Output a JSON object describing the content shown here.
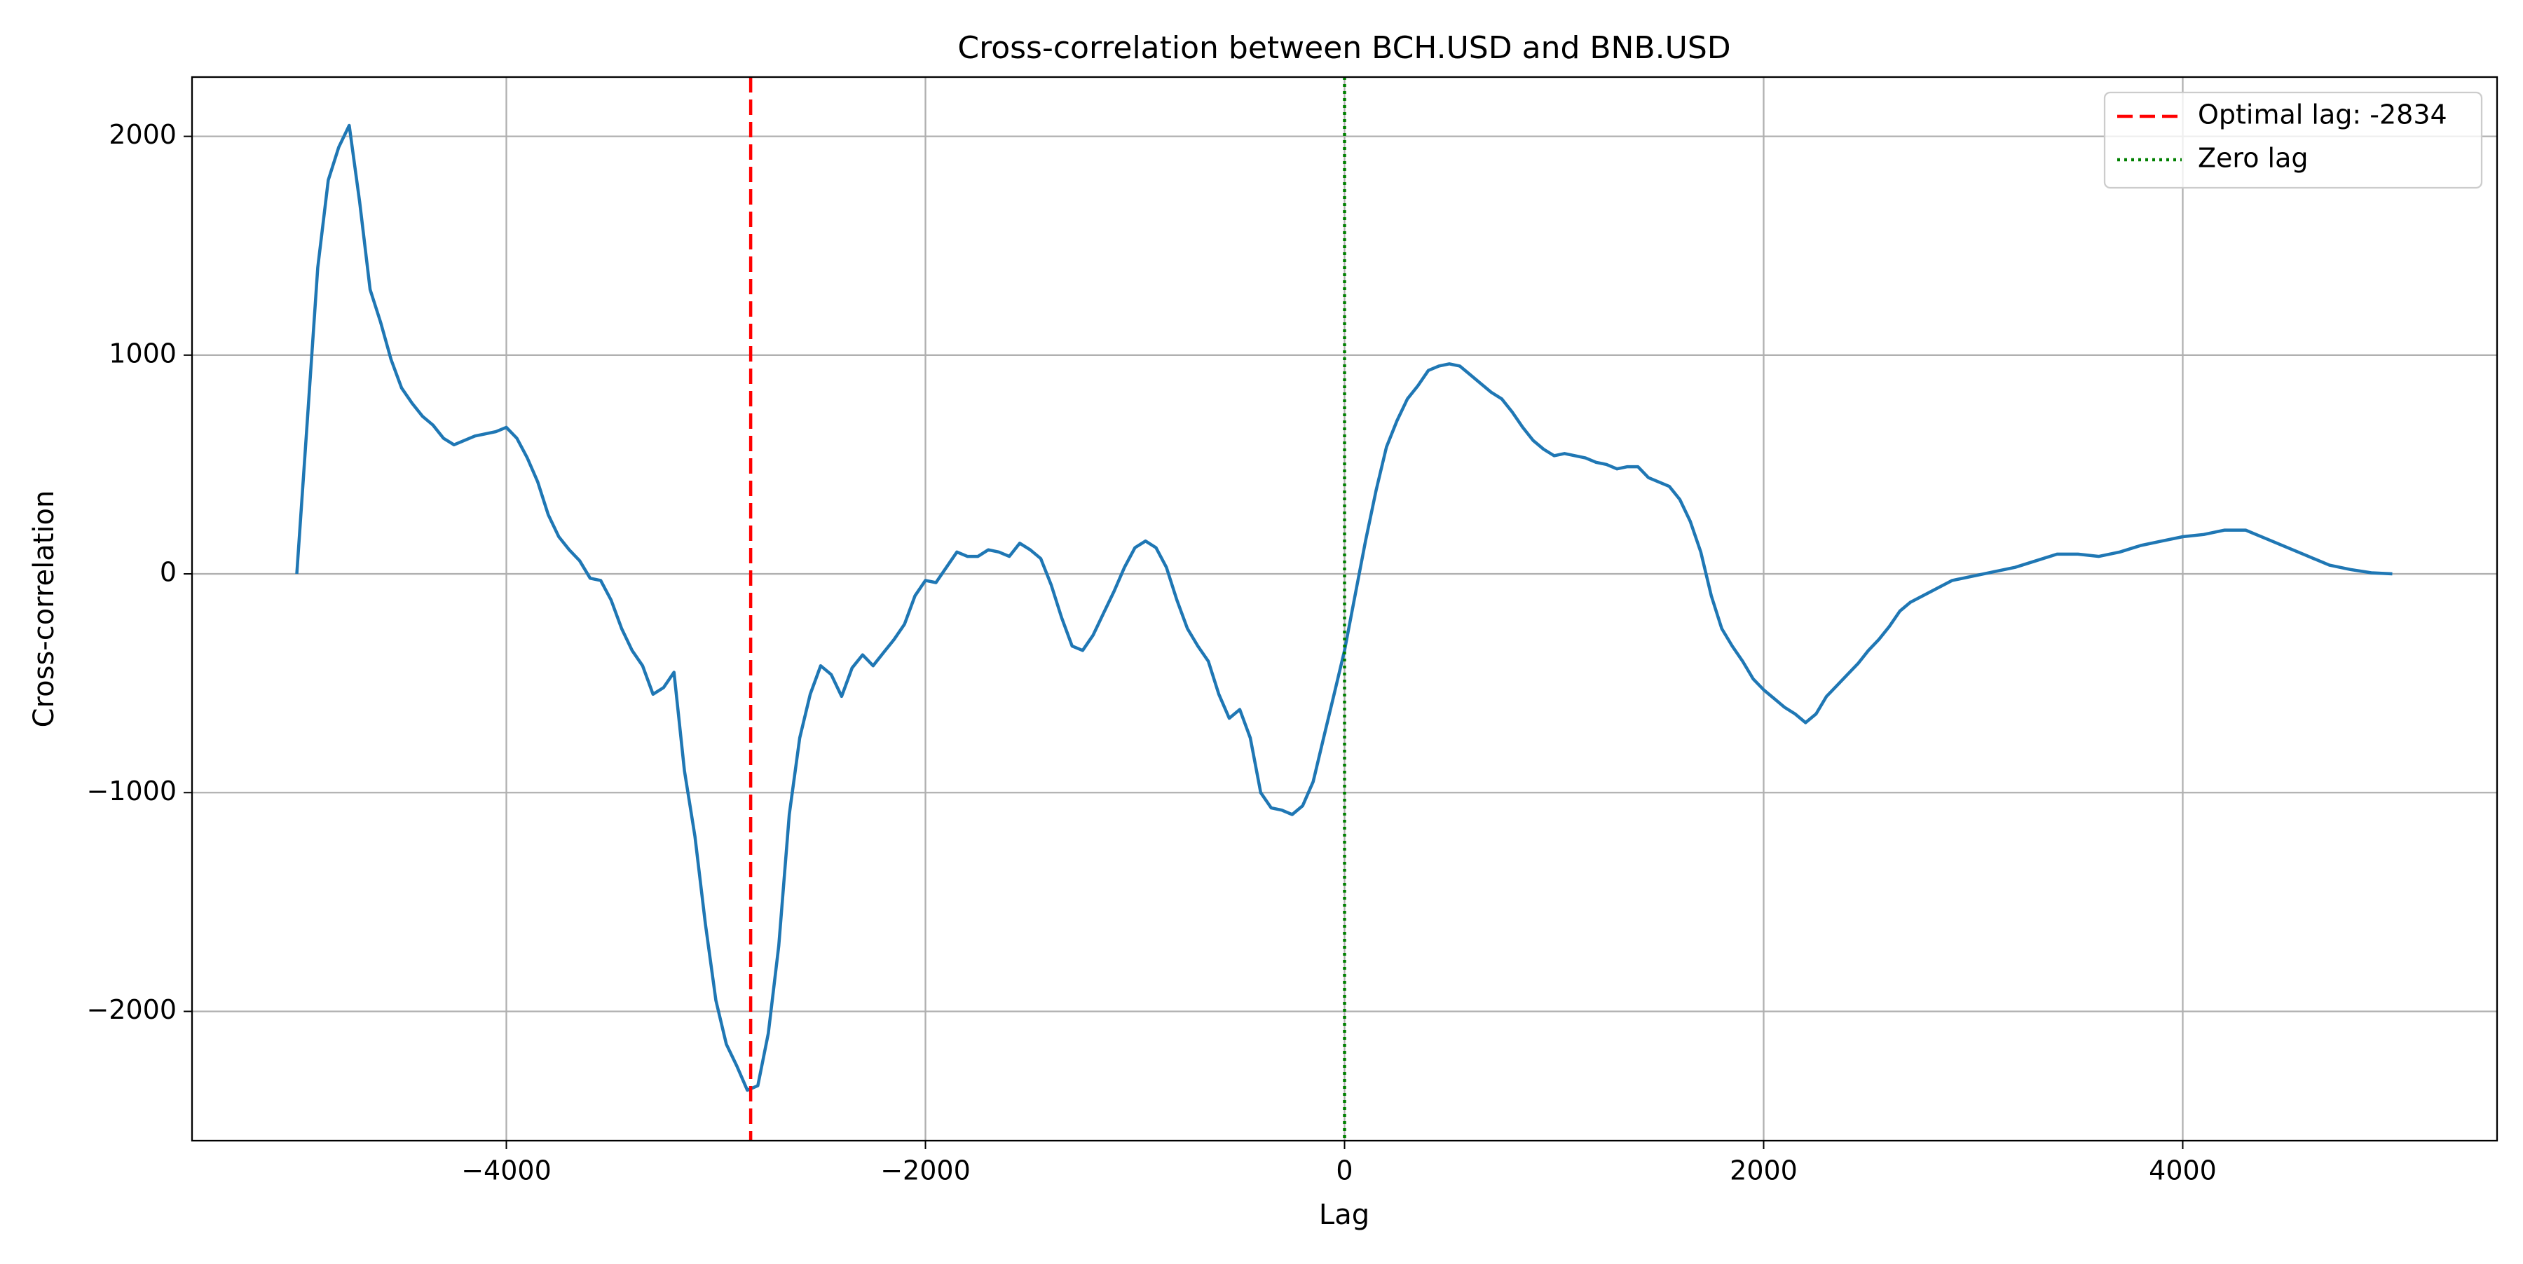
{
  "chart_data": {
    "type": "line",
    "title": "Cross-correlation between BCH.USD and BNB.USD",
    "xlabel": "Lag",
    "ylabel": "Cross-correlation",
    "xlim": [
      -5500,
      5500
    ],
    "ylim": [
      -2591,
      2271
    ],
    "xticks": [
      {
        "value": -4000,
        "label": "−4000"
      },
      {
        "value": -2000,
        "label": "−2000"
      },
      0,
      2000,
      4000
    ],
    "yticks": [
      {
        "value": -2000,
        "label": "−2000"
      },
      {
        "value": -1000,
        "label": "−1000"
      },
      0,
      1000,
      2000
    ],
    "grid": true,
    "legend_position": "upper right",
    "x": [
      -5000,
      -4950,
      -4900,
      -4850,
      -4800,
      -4750,
      -4700,
      -4650,
      -4600,
      -4550,
      -4500,
      -4450,
      -4400,
      -4350,
      -4300,
      -4250,
      -4200,
      -4150,
      -4100,
      -4050,
      -4000,
      -3950,
      -3900,
      -3850,
      -3800,
      -3750,
      -3700,
      -3650,
      -3600,
      -3550,
      -3500,
      -3450,
      -3400,
      -3350,
      -3300,
      -3250,
      -3200,
      -3150,
      -3100,
      -3050,
      -3000,
      -2950,
      -2900,
      -2850,
      -2800,
      -2750,
      -2700,
      -2650,
      -2600,
      -2550,
      -2500,
      -2450,
      -2400,
      -2350,
      -2300,
      -2250,
      -2200,
      -2150,
      -2100,
      -2050,
      -2000,
      -1950,
      -1900,
      -1850,
      -1800,
      -1750,
      -1700,
      -1650,
      -1600,
      -1550,
      -1500,
      -1450,
      -1400,
      -1350,
      -1300,
      -1250,
      -1200,
      -1150,
      -1100,
      -1050,
      -1000,
      -950,
      -900,
      -850,
      -800,
      -750,
      -700,
      -650,
      -600,
      -550,
      -500,
      -450,
      -400,
      -350,
      -300,
      -250,
      -200,
      -150,
      -100,
      -50,
      0,
      50,
      100,
      150,
      200,
      250,
      300,
      350,
      400,
      450,
      500,
      550,
      600,
      650,
      700,
      750,
      800,
      850,
      900,
      950,
      1000,
      1050,
      1100,
      1150,
      1200,
      1250,
      1300,
      1350,
      1400,
      1450,
      1500,
      1550,
      1600,
      1650,
      1700,
      1750,
      1800,
      1850,
      1900,
      1950,
      2000,
      2050,
      2100,
      2150,
      2200,
      2250,
      2300,
      2350,
      2400,
      2450,
      2500,
      2550,
      2600,
      2650,
      2700,
      2800,
      2900,
      3000,
      3100,
      3200,
      3300,
      3400,
      3500,
      3600,
      3700,
      3800,
      3900,
      4000,
      4100,
      4200,
      4300,
      4400,
      4500,
      4600,
      4700,
      4800,
      4900,
      5000
    ],
    "series": [
      {
        "color": "#1f77b4",
        "values": [
          0,
          700,
          1400,
          1800,
          1950,
          2050,
          1700,
          1300,
          1150,
          980,
          850,
          780,
          720,
          680,
          620,
          590,
          610,
          630,
          640,
          650,
          670,
          620,
          530,
          420,
          270,
          170,
          110,
          60,
          -20,
          -30,
          -120,
          -250,
          -350,
          -420,
          -550,
          -520,
          -450,
          -900,
          -1200,
          -1600,
          -1950,
          -2150,
          -2250,
          -2360,
          -2340,
          -2100,
          -1700,
          -1100,
          -750,
          -550,
          -420,
          -460,
          -560,
          -430,
          -370,
          -420,
          -360,
          -300,
          -230,
          -100,
          -30,
          -40,
          30,
          100,
          80,
          80,
          110,
          100,
          80,
          140,
          110,
          70,
          -50,
          -200,
          -330,
          -350,
          -280,
          -180,
          -80,
          30,
          120,
          150,
          120,
          30,
          -120,
          -250,
          -330,
          -400,
          -550,
          -660,
          -620,
          -750,
          -1000,
          -1070,
          -1080,
          -1100,
          -1060,
          -950,
          -750,
          -550,
          -350,
          -100,
          150,
          380,
          580,
          700,
          800,
          860,
          930,
          950,
          960,
          950,
          910,
          870,
          830,
          800,
          740,
          670,
          610,
          570,
          540,
          550,
          540,
          530,
          510,
          500,
          480,
          490,
          490,
          440,
          420,
          400,
          340,
          240,
          100,
          -100,
          -250,
          -330,
          -400,
          -480,
          -530,
          -570,
          -610,
          -640,
          -680,
          -640,
          -560,
          -510,
          -460,
          -410,
          -350,
          -300,
          -240,
          -170,
          -130,
          -80,
          -30,
          -10,
          10,
          30,
          60,
          90,
          90,
          80,
          100,
          130,
          150,
          170,
          180,
          200,
          200,
          160,
          120,
          80,
          40,
          20,
          5,
          0
        ]
      }
    ],
    "vlines": [
      {
        "label": "Optimal lag: -2834",
        "x": -2834,
        "color": "#ff0000",
        "style": "dashed"
      },
      {
        "label": "Zero lag",
        "x": 0,
        "color": "#008000",
        "style": "dotted"
      }
    ]
  }
}
